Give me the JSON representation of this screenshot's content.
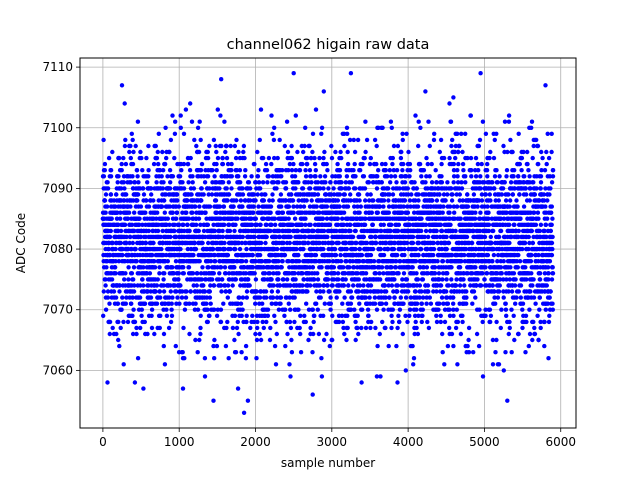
{
  "chart_data": {
    "type": "scatter",
    "title": "channel062 higain raw data",
    "xlabel": "sample number",
    "ylabel": "ADC Code",
    "xlim": [
      -300,
      6200
    ],
    "ylim": [
      7050.5,
      7111.5
    ],
    "x_ticks": [
      0,
      1000,
      2000,
      3000,
      4000,
      5000,
      6000
    ],
    "y_ticks": [
      7060,
      7070,
      7080,
      7090,
      7100,
      7110
    ],
    "grid": true,
    "marker_color": "#0000ff",
    "series": [
      {
        "n_points": 5900,
        "x_range": [
          0,
          5900
        ],
        "baseline_adc": 7081.5,
        "noise_sigma_adc": 7.5,
        "min_adc": 7053,
        "max_adc": 7109,
        "notable_points": [
          {
            "x": 250,
            "y": 7107
          },
          {
            "x": 1550,
            "y": 7108
          },
          {
            "x": 2500,
            "y": 7109
          },
          {
            "x": 3250,
            "y": 7109
          },
          {
            "x": 4950,
            "y": 7109
          },
          {
            "x": 5800,
            "y": 7107
          },
          {
            "x": 1850,
            "y": 7053
          },
          {
            "x": 1900,
            "y": 7055
          },
          {
            "x": 1450,
            "y": 7055
          },
          {
            "x": 5300,
            "y": 7055
          },
          {
            "x": 2750,
            "y": 7056
          },
          {
            "x": 1050,
            "y": 7057
          },
          {
            "x": 60,
            "y": 7058
          },
          {
            "x": 420,
            "y": 7058
          }
        ]
      }
    ]
  }
}
